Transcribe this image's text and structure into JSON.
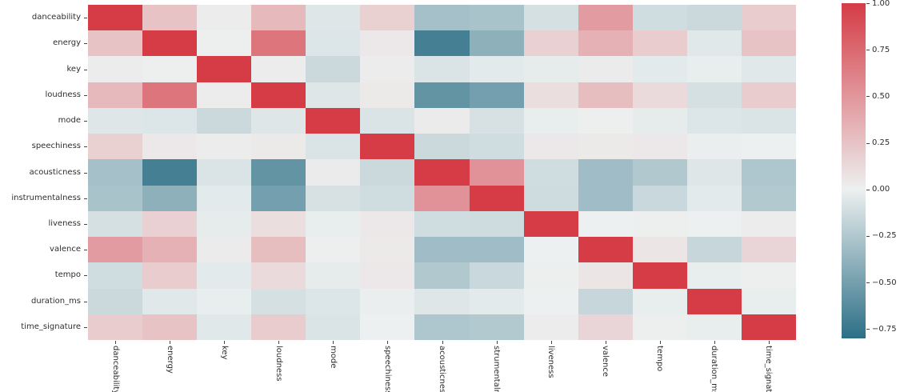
{
  "chart_data": {
    "type": "heatmap",
    "title": "",
    "xlabel": "",
    "ylabel": "",
    "grid": false,
    "legend_position": "right-colorbar",
    "features": [
      "danceability",
      "energy",
      "key",
      "loudness",
      "mode",
      "speechiness",
      "acousticness",
      "instrumentalness",
      "liveness",
      "valence",
      "tempo",
      "duration_ms",
      "time_signature"
    ],
    "x_tick_labels": [
      "danceability",
      "energy",
      "key",
      "loudness",
      "mode",
      "speechiness",
      "acousticness",
      "strumentalness",
      "liveness",
      "valence",
      "tempo",
      "duration_ms",
      "time_signature"
    ],
    "matrix": [
      [
        1.0,
        0.25,
        0.02,
        0.3,
        -0.06,
        0.18,
        -0.3,
        -0.28,
        -0.1,
        0.47,
        -0.12,
        -0.14,
        0.2
      ],
      [
        0.25,
        1.0,
        0.01,
        0.68,
        -0.07,
        0.05,
        -0.7,
        -0.4,
        0.17,
        0.35,
        0.2,
        -0.05,
        0.25
      ],
      [
        0.02,
        0.01,
        1.0,
        0.02,
        -0.14,
        0.02,
        -0.08,
        -0.04,
        -0.03,
        0.03,
        -0.04,
        -0.02,
        -0.05
      ],
      [
        0.3,
        0.68,
        0.02,
        1.0,
        -0.06,
        0.04,
        -0.57,
        -0.5,
        0.1,
        0.28,
        0.12,
        -0.1,
        0.2
      ],
      [
        -0.06,
        -0.07,
        -0.14,
        -0.06,
        1.0,
        -0.08,
        0.03,
        -0.09,
        -0.02,
        0.01,
        -0.03,
        -0.07,
        -0.08
      ],
      [
        0.18,
        0.05,
        0.02,
        0.04,
        -0.08,
        1.0,
        -0.14,
        -0.12,
        0.05,
        0.04,
        0.05,
        -0.01,
        0.0
      ],
      [
        -0.3,
        -0.7,
        -0.08,
        -0.57,
        0.03,
        -0.14,
        1.0,
        0.52,
        -0.12,
        -0.32,
        -0.25,
        -0.06,
        -0.26
      ],
      [
        -0.28,
        -0.4,
        -0.04,
        -0.5,
        -0.09,
        -0.12,
        0.52,
        1.0,
        -0.13,
        -0.32,
        -0.15,
        -0.04,
        -0.24
      ],
      [
        -0.1,
        0.17,
        -0.03,
        0.1,
        -0.02,
        0.05,
        -0.12,
        -0.13,
        1.0,
        0.0,
        0.01,
        0.0,
        0.02
      ],
      [
        0.47,
        0.35,
        0.03,
        0.28,
        0.01,
        0.04,
        -0.32,
        -0.32,
        0.0,
        1.0,
        0.06,
        -0.16,
        0.15
      ],
      [
        -0.12,
        0.2,
        -0.04,
        0.12,
        -0.03,
        0.05,
        -0.25,
        -0.15,
        0.01,
        0.06,
        1.0,
        -0.02,
        0.01
      ],
      [
        -0.14,
        -0.05,
        -0.02,
        -0.1,
        -0.07,
        -0.01,
        -0.06,
        -0.04,
        0.0,
        -0.16,
        -0.02,
        1.0,
        -0.02
      ],
      [
        0.2,
        0.25,
        -0.05,
        0.2,
        -0.08,
        0.0,
        -0.26,
        -0.24,
        0.02,
        0.15,
        0.01,
        -0.02,
        1.0
      ]
    ],
    "colorbar": {
      "tick_labels": [
        "1.00",
        "0.75",
        "0.50",
        "0.25",
        "0.00",
        "−0.25",
        "−0.50",
        "−0.75"
      ],
      "tick_values": [
        1.0,
        0.75,
        0.5,
        0.25,
        0.0,
        -0.25,
        -0.5,
        -0.75
      ],
      "vmax": 1.0,
      "vmin": -0.8
    },
    "colors": {
      "positive_max": "#d53c46",
      "zero": "#edf0f0",
      "negative_min": "#2c6f86"
    }
  }
}
